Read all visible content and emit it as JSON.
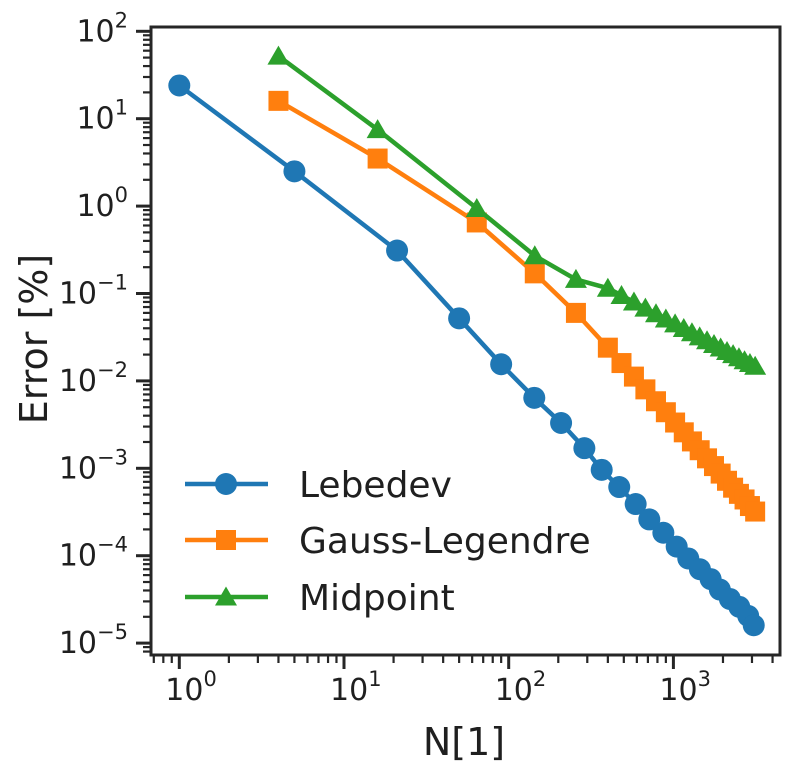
{
  "chart_data": {
    "type": "line",
    "title": "",
    "xlabel": "N[1]",
    "ylabel": "Error [%]",
    "x_scale": "log",
    "y_scale": "log",
    "grid": false,
    "xlim": [
      0.67,
      4400
    ],
    "ylim": [
      7.5e-06,
      112
    ],
    "x_tick_exponents": [
      0,
      1,
      2,
      3
    ],
    "y_tick_exponents": [
      2,
      1,
      0,
      -1,
      -2,
      -3,
      -4,
      -5
    ],
    "axis_color": "#262626",
    "legend_position": "lower left",
    "series": [
      {
        "name": "Lebedev",
        "color": "#1f77b4",
        "marker": "circle",
        "x": [
          1,
          5,
          21,
          50,
          90,
          143,
          208,
          288,
          367,
          469,
          590,
          714,
          869,
          1047,
          1231,
          1449,
          1683,
          1914,
          2203,
          2512,
          2845,
          3074
        ],
        "y": [
          24,
          2.5,
          0.31,
          0.052,
          0.0155,
          0.0064,
          0.0033,
          0.0017,
          0.00096,
          0.00061,
          0.00039,
          0.00026,
          0.000183,
          0.000127,
          9.3e-05,
          7e-05,
          5.4e-05,
          4.1e-05,
          3.2e-05,
          2.6e-05,
          2.05e-05,
          1.6e-05
        ]
      },
      {
        "name": "Gauss-Legendre",
        "color": "#ff7f0e",
        "marker": "square",
        "x": [
          4,
          16,
          64,
          144,
          256,
          400,
          484,
          576,
          676,
          784,
          900,
          1024,
          1156,
          1296,
          1444,
          1600,
          1764,
          1936,
          2116,
          2304,
          2500,
          2704,
          2916,
          3136
        ],
        "y": [
          16,
          3.5,
          0.65,
          0.17,
          0.06,
          0.024,
          0.016,
          0.0112,
          0.008,
          0.00585,
          0.00438,
          0.00334,
          0.00258,
          0.00203,
          0.00161,
          0.0013,
          0.00106,
          0.00087,
          0.00072,
          0.0006,
          0.00051,
          0.00044,
          0.00037,
          0.00032
        ]
      },
      {
        "name": "Midpoint",
        "color": "#2ca02c",
        "marker": "triangle",
        "x": [
          4,
          16,
          64,
          144,
          256,
          400,
          484,
          576,
          676,
          784,
          900,
          1024,
          1156,
          1296,
          1444,
          1600,
          1764,
          1936,
          2116,
          2304,
          2500,
          2704,
          2916,
          3136
        ],
        "y": [
          52,
          7.5,
          0.94,
          0.27,
          0.145,
          0.115,
          0.095,
          0.08,
          0.068,
          0.0587,
          0.0511,
          0.0449,
          0.0398,
          0.0355,
          0.0319,
          0.0288,
          0.0261,
          0.0238,
          0.0217,
          0.02,
          0.0184,
          0.017,
          0.0158,
          0.0147
        ]
      }
    ]
  }
}
